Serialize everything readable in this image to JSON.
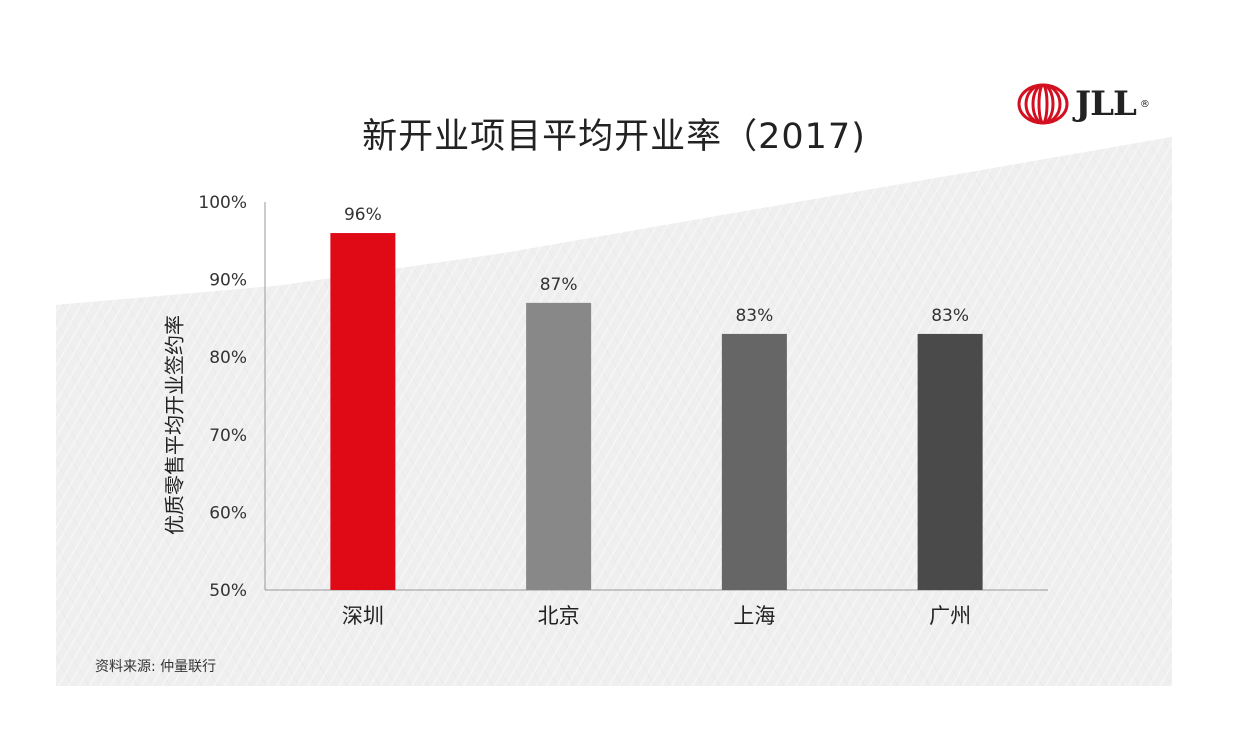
{
  "header": {
    "title": "新开业项目平均开业率（2017)",
    "logo_text": "JLL"
  },
  "footer": {
    "source": "资料来源: 仲量联行"
  },
  "colors": {
    "shenzhen": "#e00a17",
    "beijing": "#888888",
    "shanghai": "#666666",
    "guangzhou": "#4a4a4a",
    "axis": "#9a9a9a",
    "logo_red": "#d3101f"
  },
  "chart_data": {
    "type": "bar",
    "title": "新开业项目平均开业率（2017)",
    "ylabel": "优质零售平均开业签约率",
    "xlabel": "",
    "categories": [
      "深圳",
      "北京",
      "上海",
      "广州"
    ],
    "values": [
      96,
      87,
      83,
      83
    ],
    "data_labels": [
      "96%",
      "87%",
      "83%",
      "83%"
    ],
    "ylim": [
      50,
      100
    ],
    "yticks": [
      {
        "value": 100,
        "label": "100%"
      },
      {
        "value": 90,
        "label": "90%"
      },
      {
        "value": 80,
        "label": "80%"
      },
      {
        "value": 70,
        "label": "70%"
      },
      {
        "value": 60,
        "label": "60%"
      },
      {
        "value": 50,
        "label": "50%"
      }
    ],
    "grid": false,
    "legend": "none"
  }
}
